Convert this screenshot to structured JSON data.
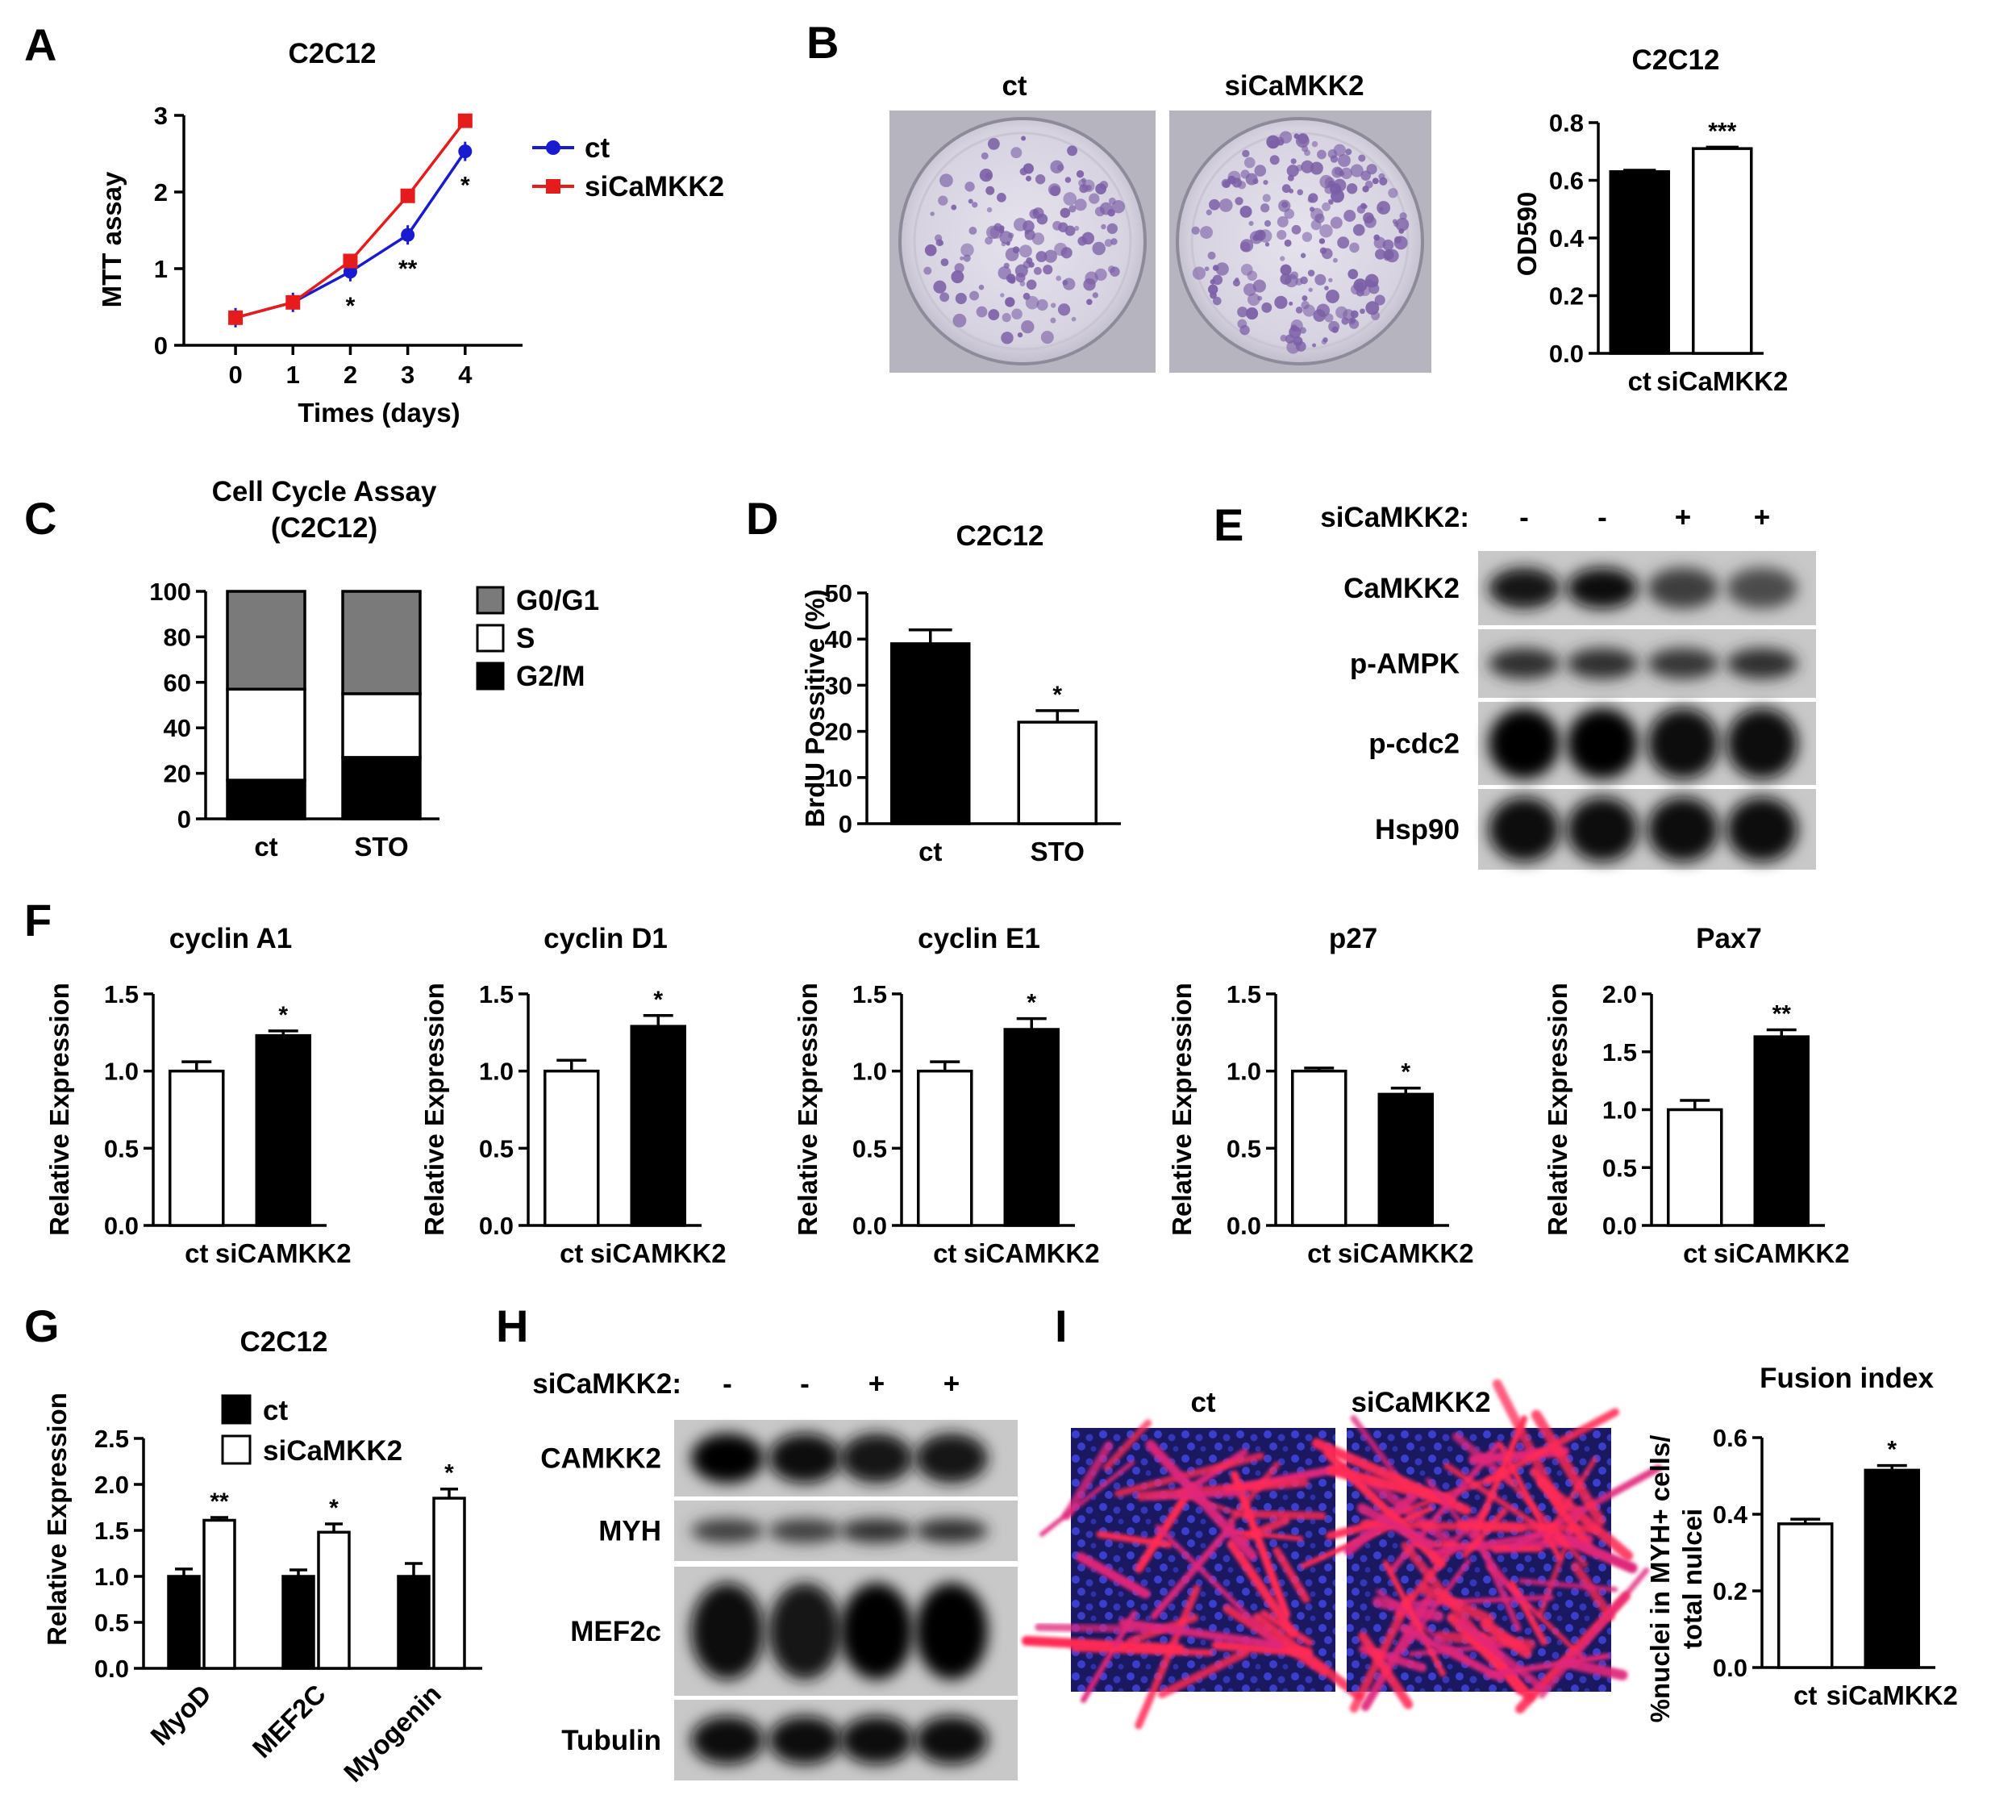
{
  "panels": {
    "A": {
      "letter": "A",
      "chart_data": {
        "type": "line",
        "title": "C2C12",
        "xlabel": "Times (days)",
        "ylabel": "MTT assay",
        "x": [
          0,
          1,
          2,
          3,
          4
        ],
        "xlim": [
          -0.9,
          5
        ],
        "ylim": [
          0,
          3
        ],
        "yticks": [
          0,
          1,
          2,
          3
        ],
        "series": [
          {
            "name": "ct",
            "color": "#1a1ad0",
            "marker": "circle",
            "values": [
              0.36,
              0.56,
              0.96,
              1.44,
              2.53
            ]
          },
          {
            "name": "siCaMKK2",
            "color": "#e61c1c",
            "marker": "square",
            "values": [
              0.36,
              0.56,
              1.1,
              1.95,
              2.93
            ]
          }
        ],
        "annotations": [
          {
            "x": 2,
            "text": "*"
          },
          {
            "x": 3,
            "text": "**"
          },
          {
            "x": 4,
            "text": "*"
          }
        ]
      }
    },
    "B": {
      "letter": "B",
      "plates": {
        "left": "ct",
        "right": "siCaMKK2"
      },
      "chart_data": {
        "type": "bar",
        "title": "C2C12",
        "ylabel": "OD590",
        "categories": [
          "ct",
          "siCaMKK2"
        ],
        "values": [
          0.63,
          0.71
        ],
        "errors": [
          0.005,
          0.005
        ],
        "fills": [
          "#000000",
          "#ffffff"
        ],
        "ylim": [
          0,
          0.8
        ],
        "yticks": [
          "0.0",
          "0.2",
          "0.4",
          "0.6",
          "0.8"
        ],
        "significance": [
          "",
          "***"
        ]
      }
    },
    "C": {
      "letter": "C",
      "chart_data": {
        "type": "bar",
        "stacked": true,
        "title": "Cell Cycle Assay",
        "subtitle": "(C2C12)",
        "categories": [
          "ct",
          "STO"
        ],
        "ylim": [
          0,
          100
        ],
        "yticks": [
          "0",
          "20",
          "40",
          "60",
          "80",
          "100"
        ],
        "series": [
          {
            "name": "G2/M",
            "color": "#000000",
            "values": [
              17,
              27
            ]
          },
          {
            "name": "S",
            "color": "#ffffff",
            "values": [
              40,
              28
            ]
          },
          {
            "name": "G0/G1",
            "color": "#7a7a7a",
            "values": [
              43,
              45
            ]
          }
        ],
        "legend_order": [
          "G0/G1",
          "S",
          "G2/M"
        ]
      }
    },
    "D": {
      "letter": "D",
      "chart_data": {
        "type": "bar",
        "title": "C2C12",
        "ylabel": "BrdU Possitive (%)",
        "categories": [
          "ct",
          "STO"
        ],
        "values": [
          39,
          22
        ],
        "errors": [
          3,
          2.5
        ],
        "fills": [
          "#000000",
          "#ffffff"
        ],
        "ylim": [
          0,
          50
        ],
        "yticks": [
          "0",
          "10",
          "20",
          "30",
          "40",
          "50"
        ],
        "significance": [
          "",
          "*"
        ]
      }
    },
    "E": {
      "letter": "E",
      "header_label": "siCaMKK2:",
      "lanes": [
        "-",
        "-",
        "+",
        "+"
      ],
      "blots": [
        {
          "label": "CaMKK2",
          "intensity": [
            0.85,
            0.9,
            0.6,
            0.5
          ],
          "thickness": 0.55
        },
        {
          "label": "p-AMPK",
          "intensity": [
            0.7,
            0.7,
            0.65,
            0.7
          ],
          "thickness": 0.45
        },
        {
          "label": "p-cdc2",
          "intensity": [
            1.0,
            1.0,
            0.95,
            0.95
          ],
          "thickness": 0.85
        },
        {
          "label": "Hsp90",
          "intensity": [
            0.95,
            0.95,
            0.95,
            0.95
          ],
          "thickness": 0.8
        }
      ]
    },
    "F": {
      "letter": "F",
      "charts": [
        {
          "type": "bar",
          "title": "cyclin A1",
          "ylabel": "Relative Expression",
          "categories": [
            "ct",
            "siCAMKK2"
          ],
          "values": [
            1.0,
            1.23
          ],
          "errors": [
            0.06,
            0.03
          ],
          "fills": [
            "#ffffff",
            "#000000"
          ],
          "ylim": [
            0,
            1.5
          ],
          "yticks": [
            "0.0",
            "0.5",
            "1.0",
            "1.5"
          ],
          "significance": [
            "",
            "*"
          ]
        },
        {
          "type": "bar",
          "title": "cyclin D1",
          "ylabel": "Relative Expression",
          "categories": [
            "ct",
            "siCAMKK2"
          ],
          "values": [
            1.0,
            1.29
          ],
          "errors": [
            0.07,
            0.07
          ],
          "fills": [
            "#ffffff",
            "#000000"
          ],
          "ylim": [
            0,
            1.5
          ],
          "yticks": [
            "0.0",
            "0.5",
            "1.0",
            "1.5"
          ],
          "significance": [
            "",
            "*"
          ]
        },
        {
          "type": "bar",
          "title": "cyclin E1",
          "ylabel": "Relative Expression",
          "categories": [
            "ct",
            "siCAMKK2"
          ],
          "values": [
            1.0,
            1.27
          ],
          "errors": [
            0.06,
            0.07
          ],
          "fills": [
            "#ffffff",
            "#000000"
          ],
          "ylim": [
            0,
            1.5
          ],
          "yticks": [
            "0.0",
            "0.5",
            "1.0",
            "1.5"
          ],
          "significance": [
            "",
            "*"
          ]
        },
        {
          "type": "bar",
          "title": "p27",
          "ylabel": "Relative Expression",
          "categories": [
            "ct",
            "siCAMKK2"
          ],
          "values": [
            1.0,
            0.85
          ],
          "errors": [
            0.02,
            0.04
          ],
          "fills": [
            "#ffffff",
            "#000000"
          ],
          "ylim": [
            0,
            1.5
          ],
          "yticks": [
            "0.0",
            "0.5",
            "1.0",
            "1.5"
          ],
          "significance": [
            "",
            "*"
          ]
        },
        {
          "type": "bar",
          "title": "Pax7",
          "ylabel": "Relative Expression",
          "categories": [
            "ct",
            "siCAMKK2"
          ],
          "values": [
            1.0,
            1.63
          ],
          "errors": [
            0.08,
            0.06
          ],
          "fills": [
            "#ffffff",
            "#000000"
          ],
          "ylim": [
            0,
            2.0
          ],
          "yticks": [
            "0.0",
            "0.5",
            "1.0",
            "1.5",
            "2.0"
          ],
          "significance": [
            "",
            "**"
          ]
        }
      ]
    },
    "G": {
      "letter": "G",
      "chart_data": {
        "type": "bar",
        "title": "C2C12",
        "ylabel": "Relative Expression",
        "categories": [
          "MyoD",
          "MEF2C",
          "Myogenin"
        ],
        "series": [
          {
            "name": "ct",
            "color": "#000000",
            "values": [
              1.0,
              1.0,
              1.0
            ],
            "errors": [
              0.08,
              0.07,
              0.14
            ]
          },
          {
            "name": "siCaMKK2",
            "color": "#ffffff",
            "values": [
              1.61,
              1.48,
              1.85
            ],
            "errors": [
              0.03,
              0.09,
              0.1
            ]
          }
        ],
        "ylim": [
          0,
          2.5
        ],
        "yticks": [
          "0.0",
          "0.5",
          "1.0",
          "1.5",
          "2.0",
          "2.5"
        ],
        "significance": [
          "**",
          "*",
          "*"
        ]
      }
    },
    "H": {
      "letter": "H",
      "header_label": "siCaMKK2:",
      "lanes": [
        "-",
        "-",
        "+",
        "+"
      ],
      "blots": [
        {
          "label": "CAMKK2",
          "intensity": [
            1.0,
            0.95,
            0.85,
            0.85
          ],
          "thickness": 0.65
        },
        {
          "label": "MYH",
          "intensity": [
            0.6,
            0.6,
            0.7,
            0.7
          ],
          "thickness": 0.4
        },
        {
          "label": "MEF2c",
          "intensity": [
            0.9,
            0.85,
            1.0,
            1.0
          ],
          "thickness": 0.75
        },
        {
          "label": "Tubulin",
          "intensity": [
            0.9,
            0.9,
            0.9,
            0.9
          ],
          "thickness": 0.6
        }
      ]
    },
    "I": {
      "letter": "I",
      "images": {
        "left": "ct",
        "right": "siCaMKK2"
      },
      "chart_data": {
        "type": "bar",
        "title": "Fusion index",
        "ylabel_lines": [
          "%nuclei in MYH+ cells/",
          "total nulcei"
        ],
        "categories": [
          "ct",
          "siCaMKK2"
        ],
        "values": [
          0.375,
          0.515
        ],
        "errors": [
          0.012,
          0.012
        ],
        "fills": [
          "#ffffff",
          "#000000"
        ],
        "ylim": [
          0,
          0.6
        ],
        "yticks": [
          "0.0",
          "0.2",
          "0.4",
          "0.6"
        ],
        "significance": [
          "",
          "*"
        ]
      }
    }
  }
}
